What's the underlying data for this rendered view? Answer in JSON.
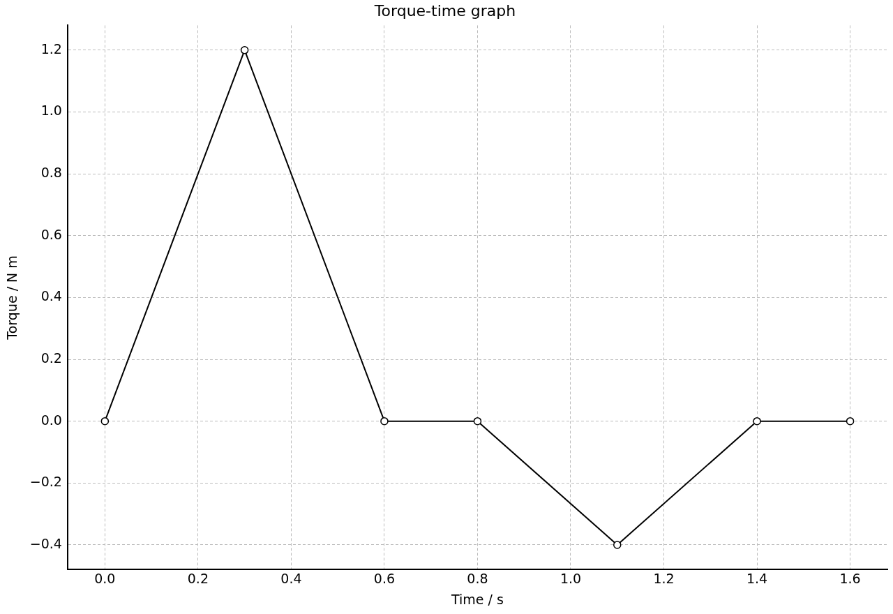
{
  "chart_data": {
    "type": "line",
    "title": "Torque-time graph",
    "xlabel": "Time / s",
    "ylabel": "Torque / N m",
    "x": [
      0,
      0.3,
      0.6,
      0.8,
      1.1,
      1.4,
      1.6
    ],
    "series": [
      {
        "color": "#000000",
        "values": [
          0,
          1.2,
          0,
          0,
          -0.4,
          0,
          0
        ]
      }
    ],
    "xlim": [
      -0.08,
      1.68
    ],
    "xticks": [
      {
        "value": 0,
        "label": "0.0"
      },
      {
        "value": 0.2,
        "label": "0.2"
      },
      {
        "value": 0.4,
        "label": "0.4"
      },
      {
        "value": 0.6,
        "label": "0.6"
      },
      {
        "value": 0.8,
        "label": "0.8"
      },
      {
        "value": 1,
        "label": "1.0"
      },
      {
        "value": 1.2,
        "label": "1.2"
      },
      {
        "value": 1.4,
        "label": "1.4"
      },
      {
        "value": 1.6,
        "label": "1.6"
      }
    ],
    "ylim": [
      -0.48,
      1.28
    ],
    "yticks": [
      {
        "value": -0.4,
        "label": "−0.4"
      },
      {
        "value": -0.2,
        "label": "−0.2"
      },
      {
        "value": 0,
        "label": "0.0"
      },
      {
        "value": 0.2,
        "label": "0.2"
      },
      {
        "value": 0.4,
        "label": "0.4"
      },
      {
        "value": 0.6,
        "label": "0.6"
      },
      {
        "value": 0.8,
        "label": "0.8"
      },
      {
        "value": 1,
        "label": "1.0"
      },
      {
        "value": 1.2,
        "label": "1.2"
      }
    ],
    "grid": true,
    "marker": "circle",
    "line_style": "solid"
  }
}
